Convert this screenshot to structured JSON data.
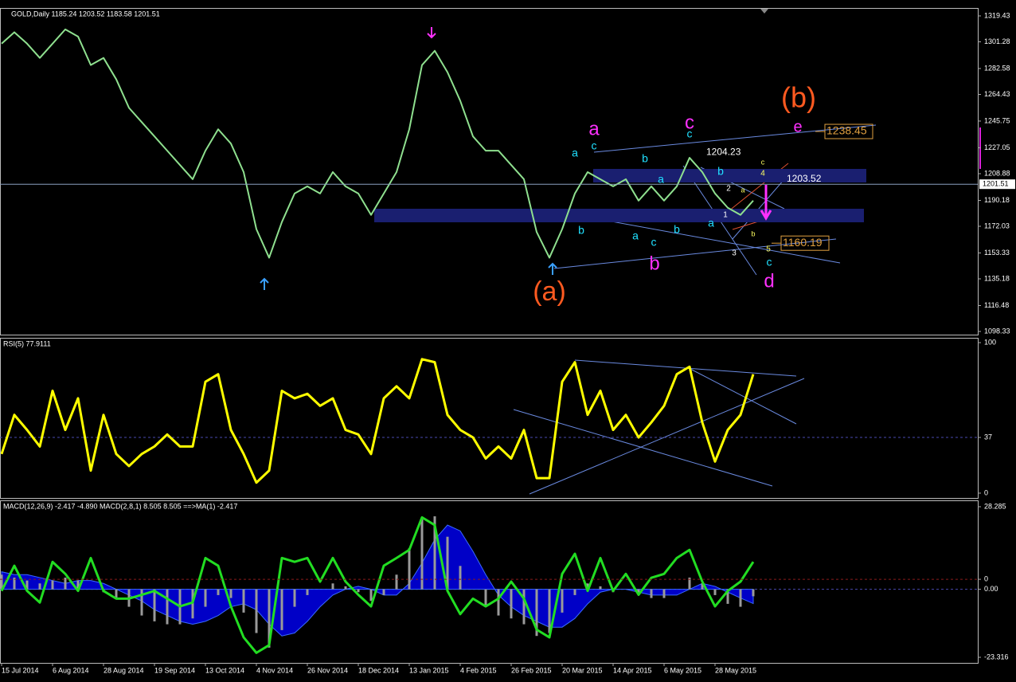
{
  "chart_data": [
    {
      "type": "line",
      "title": "GOLD,Daily  1185.24 1203.52 1183.58 1201.51",
      "color": "#8fe08f",
      "values": [
        1300,
        1308,
        1300,
        1290,
        1300,
        1310,
        1305,
        1285,
        1290,
        1275,
        1255,
        1245,
        1235,
        1225,
        1215,
        1205,
        1225,
        1240,
        1230,
        1210,
        1170,
        1150,
        1175,
        1195,
        1200,
        1195,
        1210,
        1200,
        1195,
        1180,
        1195,
        1210,
        1240,
        1285,
        1295,
        1280,
        1260,
        1235,
        1225,
        1225,
        1215,
        1205,
        1168,
        1150,
        1170,
        1195,
        1210,
        1205,
        1200,
        1205,
        1190,
        1200,
        1190,
        1200,
        1220,
        1210,
        1195,
        1185,
        1180,
        1190
      ],
      "ylim": [
        1096.1,
        1325.0
      ],
      "yticks": [
        1319.43,
        1301.28,
        1282.58,
        1264.43,
        1245.75,
        1227.05,
        1208.88,
        1190.18,
        1172.03,
        1153.33,
        1135.18,
        1116.48,
        1098.33
      ],
      "current_price": 1201.51,
      "price_labels": [
        1238.45,
        1160.19,
        1203.52,
        1204.23
      ],
      "annotations": [
        "(b)",
        "(a)",
        "a",
        "c",
        "e",
        "b",
        "d",
        "a",
        "c",
        "b",
        "b",
        "a",
        "a",
        "c",
        "b",
        "c",
        "b",
        "a",
        "c",
        "c",
        "4",
        "2",
        "a",
        "1",
        "b",
        "3",
        "5"
      ]
    },
    {
      "type": "line",
      "title": "RSI(5) 77.9111",
      "color": "#ffff00",
      "values": [
        26,
        52,
        42,
        31,
        68,
        42,
        63,
        15,
        52,
        26,
        18,
        26,
        31,
        39,
        31,
        31,
        74,
        79,
        42,
        26,
        7,
        15,
        68,
        63,
        66,
        58,
        63,
        42,
        39,
        26,
        63,
        71,
        63,
        89,
        87,
        52,
        42,
        37,
        23,
        31,
        23,
        42,
        10,
        10,
        74,
        87,
        52,
        68,
        42,
        52,
        37,
        47,
        58,
        79,
        84,
        47,
        21,
        42,
        52,
        79
      ],
      "ylim": [
        -3.2,
        103.2
      ],
      "yticks": [
        100,
        37,
        0
      ]
    },
    {
      "type": "macd",
      "title": "MACD(12,26,9) -2.417 -4.890  MACD(2,8,1) 8.505 8.505  ==>MA(1) -2.417",
      "categories": [
        "15 Jul 2014",
        null,
        null,
        null,
        "6 Aug 2014",
        null,
        null,
        null,
        "28 Aug 2014",
        null,
        null,
        null,
        "19 Sep 2014",
        null,
        null,
        null,
        "13 Oct 2014",
        null,
        null,
        null,
        "4 Nov 2014",
        null,
        null,
        null,
        "26 Nov 2014",
        null,
        null,
        null,
        "18 Dec 2014",
        null,
        null,
        null,
        "13 Jan 2015",
        null,
        null,
        null,
        "4 Feb 2015",
        null,
        null,
        null,
        "26 Feb 2015",
        null,
        null,
        null,
        "20 Mar 2015",
        null,
        null,
        null,
        "14 Apr 2015",
        null,
        null,
        null,
        "6 May 2015",
        null,
        null,
        null,
        "28 May 2015",
        null,
        null,
        null
      ],
      "series": [
        {
          "color": "#9a9a9a",
          "values": [
            5,
            4,
            3,
            2,
            3,
            4,
            3,
            0,
            -1,
            -3,
            -6,
            -9,
            -11,
            -12,
            -12,
            -10,
            -6,
            -2,
            -3,
            -8,
            -15,
            -20,
            -14,
            -6,
            -2,
            0,
            2,
            1,
            -1,
            -4,
            -2,
            5,
            14,
            24,
            25,
            18,
            8,
            0,
            -6,
            -9,
            -10,
            -12,
            -16,
            -15,
            -8,
            -2,
            2,
            1,
            -1,
            0,
            -2,
            -3,
            -3,
            0,
            4,
            2,
            -2,
            -5,
            -6,
            -2.4
          ]
        },
        {
          "color": "#0000dd",
          "values": [
            6,
            5,
            5,
            4,
            3,
            2,
            3,
            3,
            2,
            0,
            -2,
            -4,
            -7,
            -9,
            -11,
            -12,
            -11,
            -9,
            -6,
            -5,
            -7,
            -12,
            -16,
            -15,
            -11,
            -6,
            -2,
            0,
            1,
            0,
            -2,
            -2,
            2,
            9,
            17,
            22,
            20,
            13,
            5,
            -2,
            -6,
            -9,
            -11,
            -13,
            -13,
            -10,
            -5,
            -1,
            0,
            0,
            -1,
            -2,
            -2,
            -2,
            0,
            2,
            1,
            -1,
            -3,
            -4.9
          ]
        },
        {
          "color": "#22dd22",
          "axis": "y2",
          "values": [
            -3,
            3.5,
            -3,
            -6,
            4.5,
            1.4,
            -3,
            5.5,
            -3,
            -5,
            -5,
            -4,
            -3,
            -5,
            -7,
            -6,
            5.5,
            3.5,
            -7,
            -15,
            -19,
            -17,
            5.5,
            4.5,
            5.5,
            -0.6,
            5.5,
            -0.6,
            -4,
            -7,
            3.5,
            5.5,
            7.6,
            16,
            14,
            -3,
            -9,
            -5,
            -7,
            -5,
            -0.6,
            -5,
            -13,
            -15,
            1.4,
            6.6,
            -3,
            5.5,
            -3,
            1.4,
            -4,
            0.4,
            1.4,
            5.5,
            7.6,
            -0.6,
            -7,
            -3,
            -0.6,
            4.5
          ]
        }
      ],
      "ylim": [
        -25.23,
        30.47
      ],
      "yticks": [
        28.285,
        {
          "value": 0,
          "label": "0.00"
        },
        -23.316
      ],
      "y2lim": [
        -21.6,
        20.4
      ],
      "y2ticks": [
        0
      ]
    }
  ]
}
